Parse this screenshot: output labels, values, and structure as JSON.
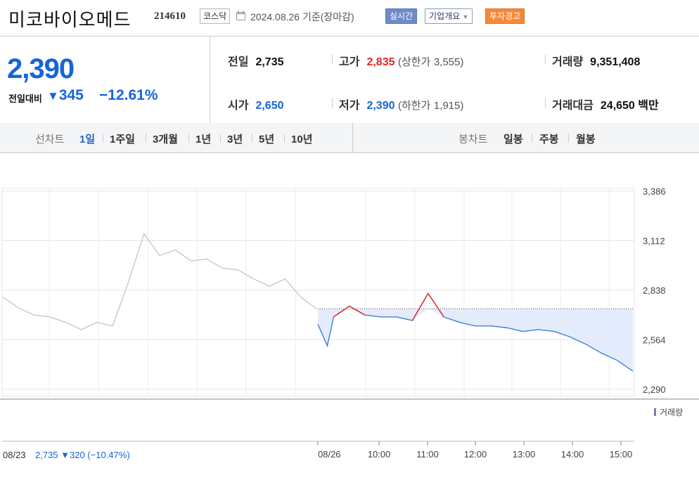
{
  "header": {
    "name": "미코바이오메드",
    "code": "214610",
    "market": "코스닥",
    "date": "2024.08.26  기준(장마감)",
    "btn_realtime": "실시간",
    "btn_company": "기업개요",
    "btn_warning": "투자경고"
  },
  "quote": {
    "price": "2,390",
    "compare_label": "전일대비",
    "change": "345",
    "change_pct": "−12.61%",
    "prev_label": "전일",
    "prev": "2,735",
    "open_label": "시가",
    "open": "2,650",
    "high_label": "고가",
    "high": "2,835",
    "upper_label": "(상한가",
    "upper": "3,555)",
    "low_label": "저가",
    "low": "2,390",
    "lower_label": "(하한가",
    "lower": "1,915)",
    "volume_label": "거래량",
    "volume": "9,351,408",
    "amount_label": "거래대금",
    "amount": "24,650",
    "amount_unit": "백만"
  },
  "tabs": {
    "line_label": "선차트",
    "line": [
      "1일",
      "1주일",
      "3개월",
      "1년",
      "3년",
      "5년",
      "10년"
    ],
    "candle_label": "봉차트",
    "candle": [
      "일봉",
      "주봉",
      "월봉"
    ]
  },
  "chart_data": {
    "type": "line",
    "y_ticks": [
      "3,386",
      "3,112",
      "2,838",
      "2,564",
      "2,290"
    ],
    "ylim": [
      2290,
      3386
    ],
    "x_ticks": [
      "08/23",
      "08/26",
      "10:00",
      "11:00",
      "12:00",
      "13:00",
      "14:00",
      "15:00"
    ],
    "volume_legend": "거래량",
    "reference_price": 2735,
    "previous_day": {
      "date": "08/23",
      "summary": "2,735 ▼320 (−10.47%)",
      "x": [
        0,
        5,
        10,
        15,
        20,
        25,
        30,
        35,
        40,
        45,
        50,
        55,
        60,
        65,
        70,
        75,
        80,
        85,
        90,
        95,
        100
      ],
      "y": [
        2800,
        2740,
        2700,
        2690,
        2660,
        2620,
        2660,
        2640,
        2880,
        3150,
        3030,
        3060,
        3000,
        3010,
        2960,
        2950,
        2900,
        2860,
        2900,
        2800,
        2735
      ]
    },
    "today": {
      "date": "08/26",
      "x": [
        0,
        3,
        5,
        10,
        15,
        20,
        25,
        30,
        35,
        40,
        45,
        50,
        55,
        60,
        65,
        70,
        75,
        80,
        85,
        90,
        95,
        100
      ],
      "y": [
        2650,
        2530,
        2690,
        2750,
        2700,
        2690,
        2690,
        2670,
        2820,
        2690,
        2660,
        2640,
        2640,
        2630,
        2610,
        2620,
        2610,
        2580,
        2540,
        2490,
        2450,
        2390
      ]
    }
  }
}
